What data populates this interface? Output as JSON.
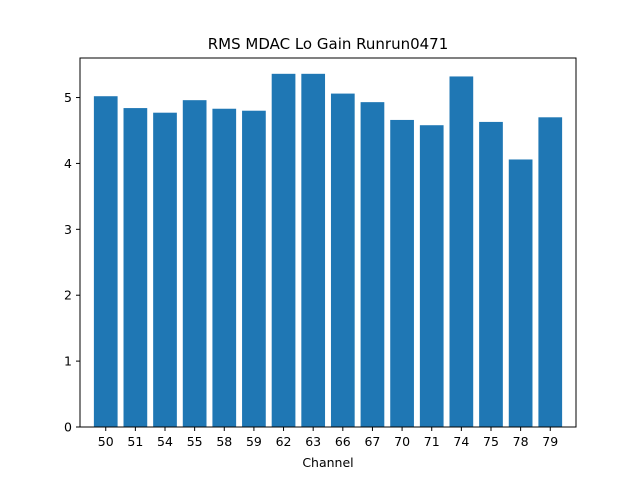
{
  "chart_data": {
    "type": "bar",
    "title": "RMS MDAC Lo Gain Runrun0471",
    "xlabel": "Channel",
    "ylabel": "",
    "categories": [
      "50",
      "51",
      "54",
      "55",
      "58",
      "59",
      "62",
      "63",
      "66",
      "67",
      "70",
      "71",
      "74",
      "75",
      "78",
      "79"
    ],
    "values": [
      5.02,
      4.84,
      4.77,
      4.96,
      4.83,
      4.8,
      5.36,
      5.36,
      5.06,
      4.93,
      4.66,
      4.58,
      5.32,
      4.63,
      4.06,
      4.7
    ],
    "ylim": [
      0,
      5.6
    ],
    "yticks": [
      "0",
      "1",
      "2",
      "3",
      "4",
      "5"
    ],
    "bar_color": "#1f77b4",
    "grid": false,
    "legend": "none"
  }
}
